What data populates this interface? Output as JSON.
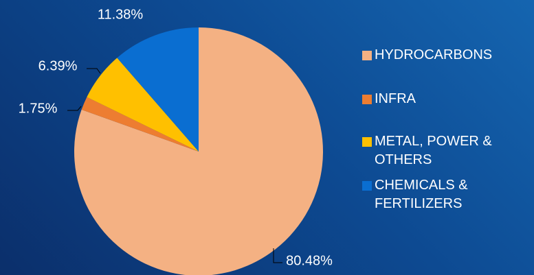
{
  "chart_data": {
    "type": "pie",
    "categories": [
      "HYDROCARBONS",
      "INFRA",
      "METAL, POWER & OTHERS",
      "CHEMICALS & FERTILIZERS"
    ],
    "values": [
      80.48,
      1.75,
      6.39,
      11.38
    ],
    "value_labels": [
      "80.48%",
      "1.75%",
      "6.39%",
      "11.38%"
    ],
    "colors": [
      "#f4b183",
      "#ed7d31",
      "#ffc000",
      "#0a6ed1"
    ],
    "legend": "right"
  }
}
